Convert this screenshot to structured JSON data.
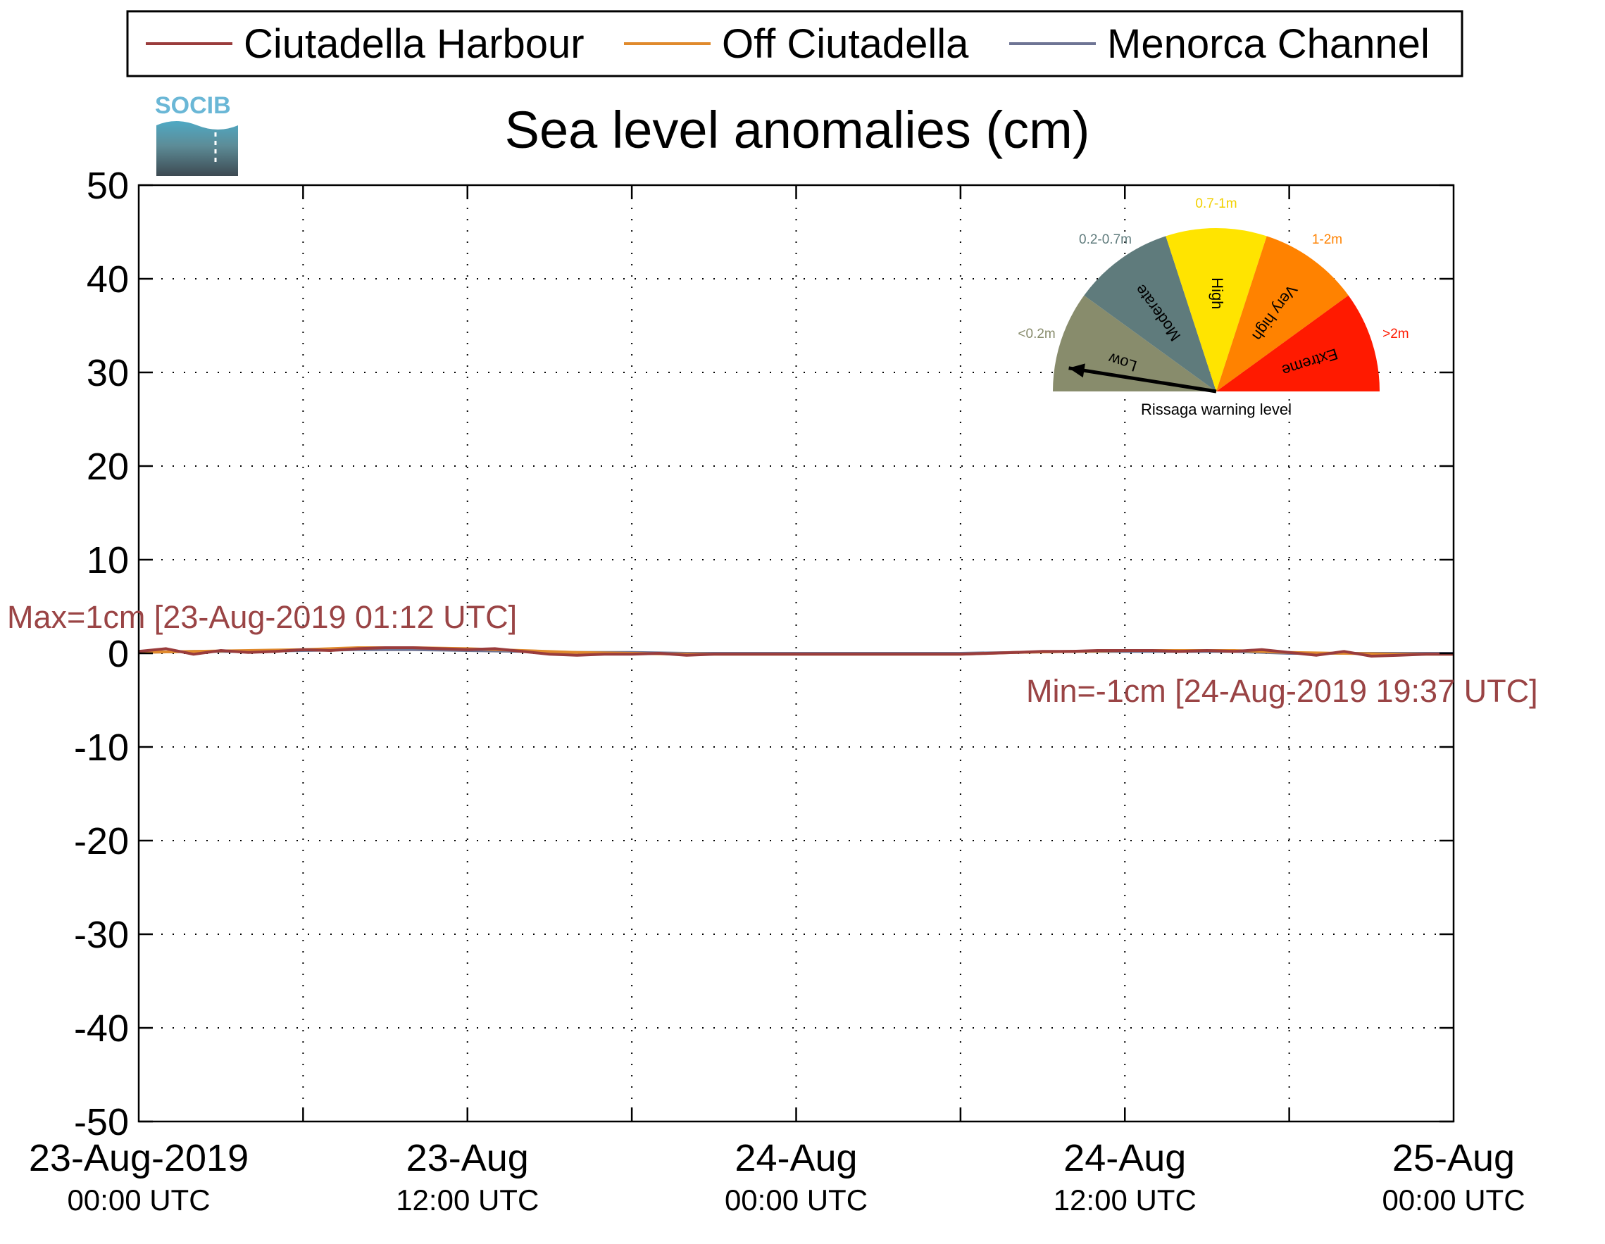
{
  "chart_data": {
    "type": "line",
    "title": "Sea level anomalies (cm)",
    "xlabel": "",
    "ylabel": "",
    "ylim": [
      -50,
      50
    ],
    "yticks": [
      50,
      40,
      30,
      20,
      10,
      0,
      -10,
      -20,
      -30,
      -40,
      -50
    ],
    "ytick_labels": [
      "50",
      "40",
      "30",
      "20",
      "10",
      "0",
      "-10",
      "-20",
      "-30",
      "-40",
      "-50"
    ],
    "xlim": [
      "2019-08-23 00:00",
      "2019-08-25 00:00"
    ],
    "x_tick_hours": [
      0,
      12,
      24,
      36,
      48
    ],
    "xticks": [
      {
        "date": "23-Aug-2019",
        "time": "00:00 UTC"
      },
      {
        "date": "23-Aug",
        "time": "12:00 UTC"
      },
      {
        "date": "24-Aug",
        "time": "00:00 UTC"
      },
      {
        "date": "24-Aug",
        "time": "12:00 UTC"
      },
      {
        "date": "25-Aug",
        "time": "00:00 UTC"
      }
    ],
    "grid": true,
    "legend_position": "top",
    "series": [
      {
        "name": "Ciutadella Harbour",
        "color": "#9a3c3c",
        "x_hours": [
          0,
          1,
          2,
          3,
          4,
          5,
          6,
          7,
          8,
          9,
          10,
          11,
          12,
          13,
          14,
          15,
          16,
          17,
          18,
          19,
          20,
          21,
          22,
          23,
          24,
          25,
          26,
          27,
          28,
          29,
          30,
          31,
          32,
          33,
          34,
          35,
          36,
          37,
          38,
          39,
          40,
          41,
          42,
          43,
          44,
          45,
          46,
          47,
          48
        ],
        "values": [
          0.2,
          0.5,
          -0.1,
          0.3,
          0.1,
          0.2,
          0.4,
          0.3,
          0.5,
          0.6,
          0.6,
          0.5,
          0.4,
          0.5,
          0.2,
          -0.1,
          -0.2,
          -0.1,
          -0.1,
          0.0,
          -0.2,
          -0.1,
          -0.1,
          -0.1,
          -0.1,
          -0.1,
          -0.1,
          -0.1,
          -0.1,
          -0.1,
          -0.1,
          0.0,
          0.1,
          0.2,
          0.2,
          0.3,
          0.3,
          0.3,
          0.2,
          0.3,
          0.2,
          0.4,
          0.1,
          -0.2,
          0.2,
          -0.3,
          -0.2,
          -0.1,
          -0.1
        ]
      },
      {
        "name": "Off Ciutadella",
        "color": "#e08a2c",
        "x_hours": [
          0,
          2,
          4,
          6,
          8,
          10,
          12,
          14,
          16,
          18,
          20,
          22,
          24,
          26,
          28,
          30,
          32,
          34,
          36,
          38,
          40,
          42,
          44,
          46,
          48
        ],
        "values": [
          0.1,
          0.2,
          0.3,
          0.4,
          0.6,
          0.6,
          0.5,
          0.3,
          0.1,
          0.0,
          -0.1,
          -0.1,
          -0.1,
          -0.1,
          -0.1,
          -0.1,
          0.1,
          0.2,
          0.3,
          0.3,
          0.3,
          0.1,
          0.0,
          -0.1,
          -0.1
        ]
      },
      {
        "name": "Menorca Channel",
        "color": "#6e7494",
        "x_hours": [
          0,
          2,
          4,
          6,
          8,
          10,
          12,
          14,
          16,
          18,
          20,
          22,
          24,
          26,
          28,
          30,
          32,
          34,
          36,
          38,
          40,
          42,
          44,
          46,
          48
        ],
        "values": [
          0.1,
          0.2,
          0.2,
          0.3,
          0.4,
          0.4,
          0.3,
          0.2,
          0.1,
          0.1,
          0.0,
          0.0,
          0.0,
          0.0,
          0.0,
          0.0,
          0.1,
          0.2,
          0.2,
          0.2,
          0.2,
          0.0,
          0.0,
          0.0,
          0.0
        ]
      }
    ],
    "annotations": {
      "max": {
        "text": "Max=1cm [23-Aug-2019 01:12 UTC]",
        "x_hours": 1.2,
        "value": 1
      },
      "min": {
        "text": "Min=-1cm [24-Aug-2019 19:37 UTC]",
        "x_hours": 43.6,
        "value": -1
      }
    }
  },
  "gauge": {
    "caption": "Rissaga warning level",
    "needle_value": 0.05,
    "bands": [
      {
        "range_label": "<0.2m",
        "category": "Low",
        "color": "#888c6c",
        "label_color": "#888c6c"
      },
      {
        "range_label": "0.2-0.7m",
        "category": "Moderate",
        "color": "#5f7b7c",
        "label_color": "#5f7b7c"
      },
      {
        "range_label": "0.7-1m",
        "category": "High",
        "color": "#ffe400",
        "label_color": "#f2d000"
      },
      {
        "range_label": "1-2m",
        "category": "Very high",
        "color": "#ff8200",
        "label_color": "#ff8200"
      },
      {
        "range_label": ">2m",
        "category": "Extreme",
        "color": "#ff1a00",
        "label_color": "#ff1a00"
      }
    ]
  },
  "logo": {
    "text": "SOCIB"
  }
}
